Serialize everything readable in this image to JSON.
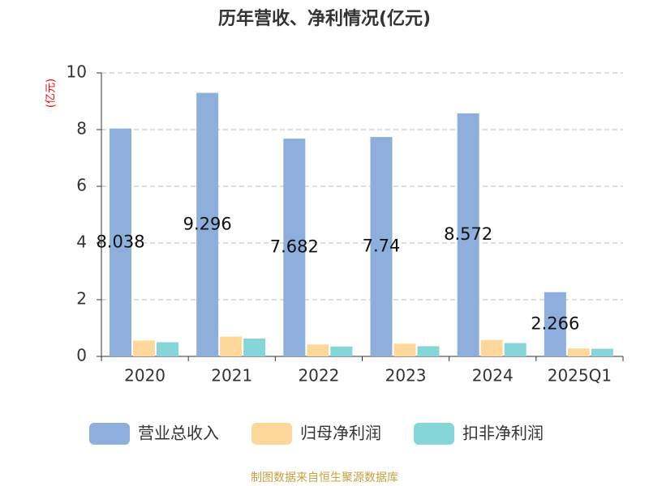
{
  "chart_data": {
    "type": "bar",
    "title": "历年营收、净利情况(亿元)",
    "y_label": "(亿元)",
    "categories": [
      "2020",
      "2021",
      "2022",
      "2023",
      "2024",
      "2025Q1"
    ],
    "series": [
      {
        "name": "营业总收入",
        "color": "#8eaedb",
        "values": [
          8.038,
          9.296,
          7.682,
          7.74,
          8.572,
          2.266
        ],
        "show_labels": true
      },
      {
        "name": "归母净利润",
        "color": "#fdd89a",
        "values": [
          0.56,
          0.7,
          0.42,
          0.45,
          0.58,
          0.28
        ]
      },
      {
        "name": "扣非净利润",
        "color": "#86d5d8",
        "values": [
          0.5,
          0.63,
          0.35,
          0.36,
          0.47,
          0.27
        ]
      }
    ],
    "ylim": [
      0,
      10
    ],
    "yticks": [
      0,
      2,
      4,
      6,
      8,
      10
    ],
    "grid": true,
    "source": "制图数据来自恒生聚源数据库"
  }
}
